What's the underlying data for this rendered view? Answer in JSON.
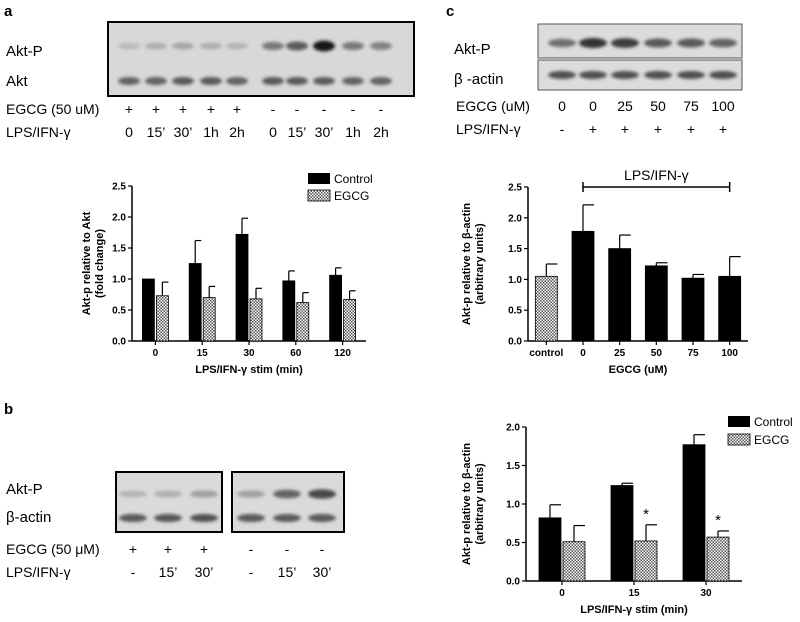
{
  "panels": {
    "a": "a",
    "b": "b",
    "c": "c"
  },
  "blot_a": {
    "rows": [
      "Akt-P",
      "Akt"
    ],
    "egcg_label": "EGCG (50 uM)",
    "egcg_signs": [
      "+",
      "+",
      "+",
      "+",
      "+",
      "-",
      "-",
      "-",
      "-",
      "-"
    ],
    "lps_label": "LPS/IFN-γ",
    "lps_times": [
      "0",
      "15’",
      "30’",
      "1h",
      "2h",
      "0",
      "15’",
      "30’",
      "1h",
      "2h"
    ],
    "band_intensity_top": [
      0.12,
      0.18,
      0.22,
      0.18,
      0.15,
      0.45,
      0.6,
      0.95,
      0.45,
      0.4
    ],
    "band_intensity_bottom": [
      0.55,
      0.55,
      0.6,
      0.6,
      0.55,
      0.6,
      0.6,
      0.6,
      0.55,
      0.55
    ]
  },
  "blot_b": {
    "rows": [
      "Akt-P",
      "β-actin"
    ],
    "egcg_label": "EGCG (50 μM)",
    "egcg_signs": [
      "+",
      "+",
      "+",
      "-",
      "-",
      "-"
    ],
    "lps_label": "LPS/IFN-γ",
    "lps_times": [
      "-",
      "15’",
      "30’",
      "-",
      "15’",
      "30’"
    ],
    "band_intensity_top": [
      0.15,
      0.18,
      0.25,
      0.25,
      0.55,
      0.7
    ],
    "band_intensity_bottom": [
      0.6,
      0.62,
      0.65,
      0.6,
      0.6,
      0.6
    ]
  },
  "blot_c": {
    "rows": [
      "Akt-P",
      "β -actin"
    ],
    "egcg_label": "EGCG (uM)",
    "egcg_values": [
      "0",
      "0",
      "25",
      "50",
      "75",
      "100"
    ],
    "lps_label": "LPS/IFN-γ",
    "lps_signs": [
      "-",
      "+",
      "+",
      "+",
      "+",
      "+"
    ],
    "band_intensity_top": [
      0.5,
      0.8,
      0.75,
      0.6,
      0.6,
      0.55
    ],
    "band_intensity_bottom": [
      0.65,
      0.65,
      0.65,
      0.65,
      0.65,
      0.65
    ]
  },
  "colors": {
    "control": "#000000",
    "egcg_hatch": "#9a9a9a"
  },
  "chart_data": [
    {
      "id": "a",
      "type": "bar",
      "categories": [
        "0",
        "15",
        "30",
        "60",
        "120"
      ],
      "series": [
        {
          "name": "Control",
          "values": [
            1.0,
            1.25,
            1.72,
            0.97,
            1.06
          ],
          "errors": [
            0.0,
            0.37,
            0.26,
            0.16,
            0.12
          ]
        },
        {
          "name": "EGCG",
          "values": [
            0.73,
            0.7,
            0.68,
            0.62,
            0.67
          ],
          "errors": [
            0.22,
            0.18,
            0.17,
            0.16,
            0.14
          ]
        }
      ],
      "xlabel": "LPS/IFN-γ stim (min)",
      "ylabel": [
        "Akt-p relative to Akt",
        "(fold change)"
      ],
      "ylim": [
        0,
        2.5
      ],
      "yticks": [
        "0.0",
        "0.5",
        "1.0",
        "1.5",
        "2.0",
        "2.5"
      ],
      "legend": "top-right"
    },
    {
      "id": "b",
      "type": "bar",
      "categories": [
        "0",
        "15",
        "30"
      ],
      "series": [
        {
          "name": "Control",
          "values": [
            0.82,
            1.24,
            1.77
          ],
          "errors": [
            0.17,
            0.03,
            0.13
          ]
        },
        {
          "name": "EGCG",
          "values": [
            0.51,
            0.52,
            0.57
          ],
          "errors": [
            0.21,
            0.21,
            0.08
          ]
        }
      ],
      "annotations": [
        "*",
        "*"
      ],
      "xlabel": "LPS/IFN-γ stim (min)",
      "ylabel": [
        "Akt-p relative to β-actin",
        "(arbitrary units)"
      ],
      "ylim": [
        0,
        2.0
      ],
      "yticks": [
        "0.0",
        "0.5",
        "1.0",
        "1.5",
        "2.0"
      ],
      "legend": "top-right"
    },
    {
      "id": "c",
      "type": "bar",
      "categories": [
        "control",
        "0",
        "25",
        "50",
        "75",
        "100"
      ],
      "values": [
        1.05,
        1.78,
        1.5,
        1.22,
        1.02,
        1.05
      ],
      "errors": [
        0.2,
        0.43,
        0.22,
        0.05,
        0.06,
        0.32
      ],
      "bracket_label": "LPS/IFN-γ",
      "xlabel": "EGCG (uM)",
      "ylabel": [
        "Akt-p relative to β-actin",
        "(arbitrary units)"
      ],
      "ylim": [
        0,
        2.5
      ],
      "yticks": [
        "0.0",
        "0.5",
        "1.0",
        "1.5",
        "2.0",
        "2.5"
      ]
    }
  ]
}
